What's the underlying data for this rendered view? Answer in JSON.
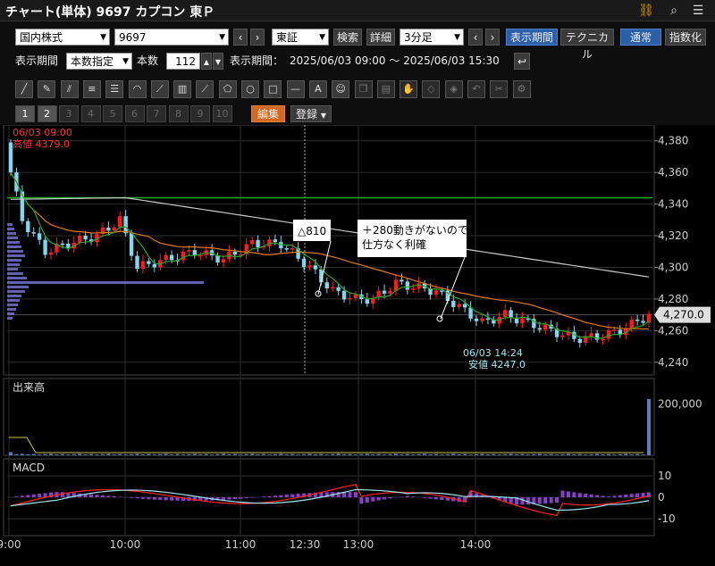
{
  "window": {
    "title": "チャート(単体) 9697 カプコン 東Ｐ"
  },
  "toolbar": {
    "market_select": "国内株式",
    "code_select": "9697",
    "exchange_select": "東証",
    "search_label": "検索",
    "detail_label": "詳細",
    "interval_select": "3分足",
    "display_period_label": "表示期間",
    "technical_label": "テクニカル",
    "normal_label": "通常",
    "index_label": "指数化"
  },
  "period_row": {
    "label": "表示期間",
    "mode_select": "本数指定",
    "count_label": "本数",
    "count_value": "112",
    "range_label": "表示期間：",
    "range_value": "2025/06/03 09:00 〜 2025/06/03 15:30"
  },
  "tabs": {
    "items": [
      "1",
      "2",
      "3",
      "4",
      "5",
      "6",
      "7",
      "8",
      "9",
      "10"
    ],
    "edit_label": "編集",
    "register_label": "登録"
  },
  "drawing_tools": [
    "line-tool-icon",
    "ruler-tool-icon",
    "parallel-tool-icon",
    "hlines-tool-icon",
    "fib-tool-icon",
    "arc-tool-icon",
    "fan-tool-icon",
    "grid-tool-icon",
    "gann-tool-icon",
    "pentagon-tool-icon",
    "circle-tool-icon",
    "rect-tool-icon",
    "hline-tool-icon",
    "text-tool-icon",
    "icon-tool-icon",
    "copy-icon",
    "paste-icon",
    "hand-icon",
    "eraser-icon",
    "eraser-all-icon",
    "undo-icon",
    "clip-icon",
    "settings-icon"
  ],
  "chart_data": [
    {
      "type": "candlestick",
      "crosshair": {
        "time": "06/03 09:00",
        "high_label": "高値 4379.0"
      },
      "yaxis_ticks": [
        "4,380",
        "4,360",
        "4,340",
        "4,320",
        "4,300",
        "4,280",
        "4,260",
        "4,240"
      ],
      "current_price": "4,270.0",
      "low_annotation": {
        "time": "06/03 14:24",
        "label": "安値 4247.0"
      },
      "annotations": [
        "△810",
        "＋280動きがないので",
        "仕方なく利確"
      ],
      "ylim": [
        4232,
        4390
      ]
    },
    {
      "type": "bar",
      "title": "出来高",
      "yaxis_ticks": [
        "200,000"
      ]
    },
    {
      "type": "line",
      "title": "MACD",
      "yaxis_ticks": [
        "10",
        "0",
        "-10"
      ],
      "xaxis_ticks": [
        "9:00",
        "10:00",
        "11:00",
        "12:30",
        "13:00",
        "14:00"
      ]
    }
  ],
  "colors": {
    "up": "#ff1a1a",
    "down": "#7fd6ee",
    "ma_upper": "#c8c8c8",
    "ma_orange": "#e07a1a",
    "ma_green": "#2aa52a",
    "resist": "#1fae1f",
    "macd": "#ff2020",
    "signal": "#9fe6f0",
    "hist": "#8a3fc9"
  }
}
